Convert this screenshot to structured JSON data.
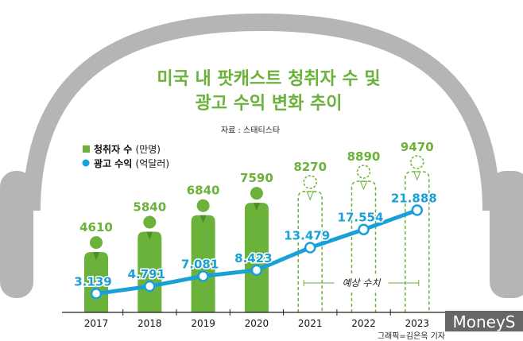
{
  "chart_data": {
    "type": "bar+line",
    "title_line1": "미국 내 팟캐스트 청취자 수 및",
    "title_line2": "광고 수익 변화 추이",
    "source": "자료 : 스태티스타",
    "categories": [
      "2017",
      "2018",
      "2019",
      "2020",
      "2021",
      "2022",
      "2023"
    ],
    "series": [
      {
        "name": "청취자 수",
        "unit": "(만명)",
        "type": "bar",
        "values": [
          4610,
          5840,
          6840,
          7590,
          8270,
          8890,
          9470
        ],
        "labels": [
          "4610",
          "5840",
          "6840",
          "7590",
          "8270",
          "8890",
          "9470"
        ],
        "color": "#6ab23a"
      },
      {
        "name": "광고 수익",
        "unit": "(억달러)",
        "type": "line",
        "values": [
          3.139,
          4.791,
          7.081,
          8.423,
          13.479,
          17.554,
          21.888
        ],
        "labels": [
          "3.139",
          "4.791",
          "7.081",
          "8.423",
          "13.479",
          "17.554",
          "21.888"
        ],
        "color": "#1aa0d8"
      }
    ],
    "forecast_from": "2021",
    "forecast_label": "예상 수치",
    "legend_position": "top-left",
    "credit": "그래픽=김은옥 기자",
    "logo": "MoneyS"
  }
}
